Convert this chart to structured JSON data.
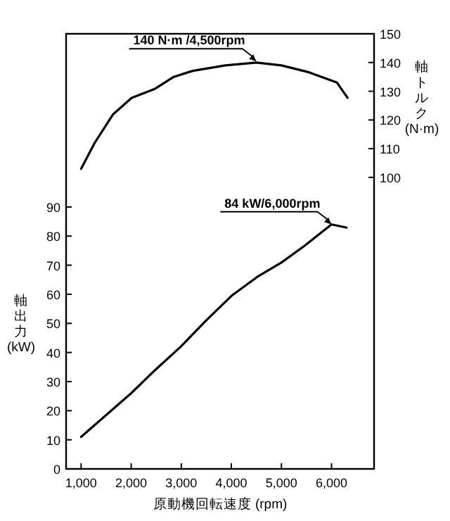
{
  "chart_data": {
    "type": "line",
    "xlabel": "原動機回転速度 (rpm)",
    "ylabel": "軸出力 (kW)",
    "y2label": "軸トルク (N·m)",
    "xlim": [
      700,
      6850
    ],
    "xticks": [
      {
        "value": 1000,
        "label": "1,000"
      },
      {
        "value": 2000,
        "label": "2,000"
      },
      {
        "value": 3000,
        "label": "3,000"
      },
      {
        "value": 4000,
        "label": "4,000"
      },
      {
        "value": 5000,
        "label": "5,000"
      },
      {
        "value": 6000,
        "label": "6,000"
      }
    ],
    "ylim": [
      0,
      149.5
    ],
    "yticks": [
      0,
      10,
      20,
      30,
      40,
      50,
      60,
      70,
      80,
      90
    ],
    "y2lim": [
      -1.5,
      150
    ],
    "y2ticks": [
      100,
      110,
      120,
      130,
      140,
      150
    ],
    "series": [
      {
        "color": "#000000",
        "axis": "y2",
        "x": [
          1000,
          1270,
          1640,
          2010,
          2480,
          2850,
          3230,
          3880,
          4500,
          5000,
          5550,
          6110,
          6320
        ],
        "values": [
          103,
          112,
          122,
          127.7,
          130.9,
          135,
          137.1,
          139,
          140,
          139,
          136.6,
          133,
          127.7
        ]
      },
      {
        "color": "#000000",
        "x": [
          1000,
          2000,
          2480,
          2990,
          3490,
          4020,
          4520,
          5000,
          5450,
          6000,
          6300
        ],
        "values": [
          11,
          26,
          34,
          42,
          50.9,
          59.7,
          66,
          70.9,
          76.5,
          84,
          82.9
        ]
      }
    ],
    "annotations": [
      {
        "text": "140 N·m /4,500rpm",
        "x": 4500,
        "y": 140
      },
      {
        "text": "84 kW/6,000rpm",
        "x": 6000,
        "y": 84
      }
    ],
    "grid": false,
    "marker": "none",
    "line_style": "solid"
  }
}
